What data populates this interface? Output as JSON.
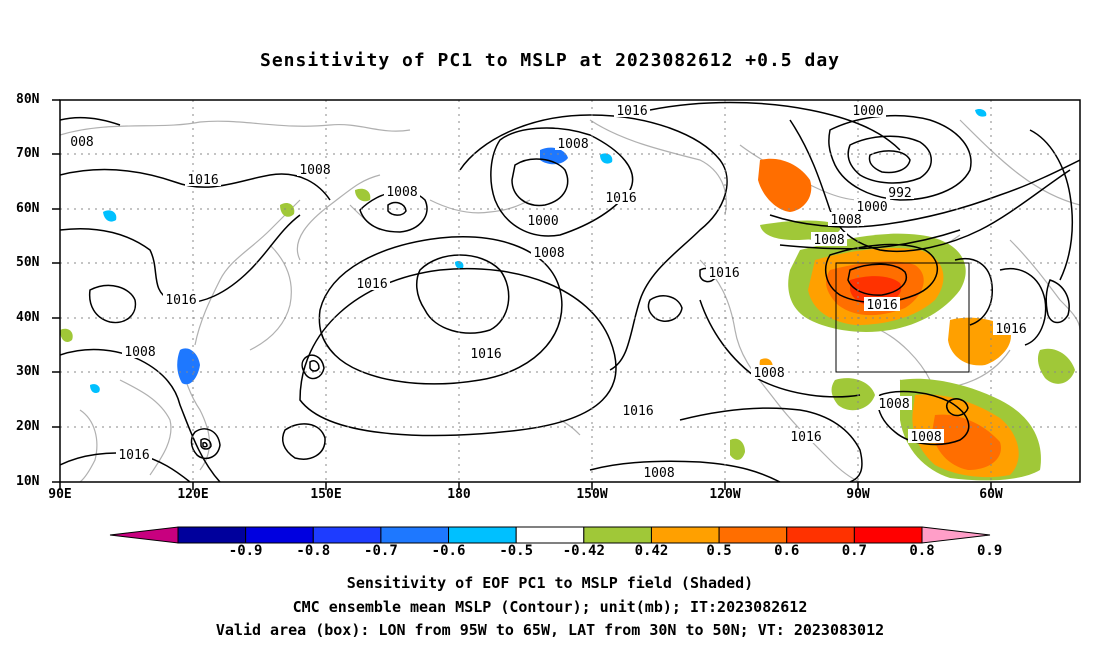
{
  "title": "Sensitivity of PC1 to MSLP at 2023082612 +0.5 day",
  "lat_labels": [
    "80N",
    "70N",
    "60N",
    "50N",
    "40N",
    "30N",
    "20N",
    "10N"
  ],
  "lon_labels": [
    "90E",
    "120E",
    "150E",
    "180",
    "150W",
    "120W",
    "90W",
    "60W"
  ],
  "contour_labels": [
    "1016",
    "1000",
    "008",
    "1008",
    "1016",
    "1008",
    "1008",
    "1016",
    "1000",
    "1008",
    "992",
    "1000",
    "1008",
    "1016",
    "1016",
    "1016",
    "1016",
    "1016",
    "1016",
    "1016",
    "1008",
    "1008",
    "1008",
    "1008",
    "1016",
    "1008",
    "1008",
    "1016"
  ],
  "colorbar": {
    "ticks": [
      "-0.9",
      "-0.8",
      "-0.7",
      "-0.6",
      "-0.5",
      "-0.42",
      "0.42",
      "0.5",
      "0.6",
      "0.7",
      "0.8",
      "0.9"
    ],
    "colors": [
      "#c8007f",
      "#00009c",
      "#0000e0",
      "#1e3cff",
      "#1e78ff",
      "#00c0ff",
      "#ffffff",
      "#a0c838",
      "#ffa000",
      "#ff6e00",
      "#ff3200",
      "#ff0000",
      "#ff9ec8"
    ]
  },
  "valid_box": {
    "lon_from": "95W",
    "lon_to": "65W",
    "lat_from": "30N",
    "lat_to": "50N"
  },
  "footer": {
    "line1": "Sensitivity of EOF PC1 to MSLP field (Shaded)",
    "line2": "CMC ensemble mean MSLP (Contour); unit(mb); IT:2023082612",
    "line3": "Valid area (box): LON from 95W to 65W, LAT from 30N to 50N; VT: 2023083012"
  }
}
